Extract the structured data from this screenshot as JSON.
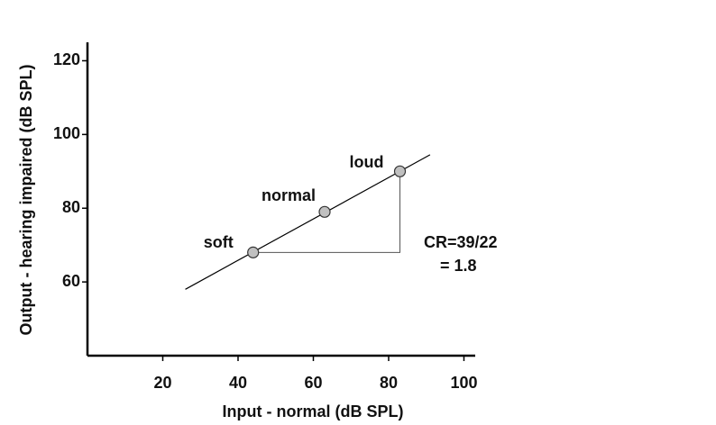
{
  "chart_data": {
    "type": "scatter",
    "x_label": "Input - normal (dB SPL)",
    "y_label": "Output - hearing impaired (dB SPL)",
    "xlim": [
      0,
      103
    ],
    "ylim": [
      40,
      125
    ],
    "xticks": [
      20,
      40,
      60,
      80,
      100
    ],
    "yticks": [
      60,
      80,
      100,
      120
    ],
    "points": {
      "labels": [
        "soft",
        "normal",
        "loud"
      ],
      "x": [
        44,
        63,
        83
      ],
      "y": [
        68,
        79,
        90
      ],
      "color": "#c0c0c0"
    },
    "line": {
      "x": [
        26,
        91
      ],
      "y": [
        58,
        94.5
      ],
      "color": "#000000"
    },
    "annotation": [
      "CR=39/22",
      "= 1.8"
    ]
  }
}
